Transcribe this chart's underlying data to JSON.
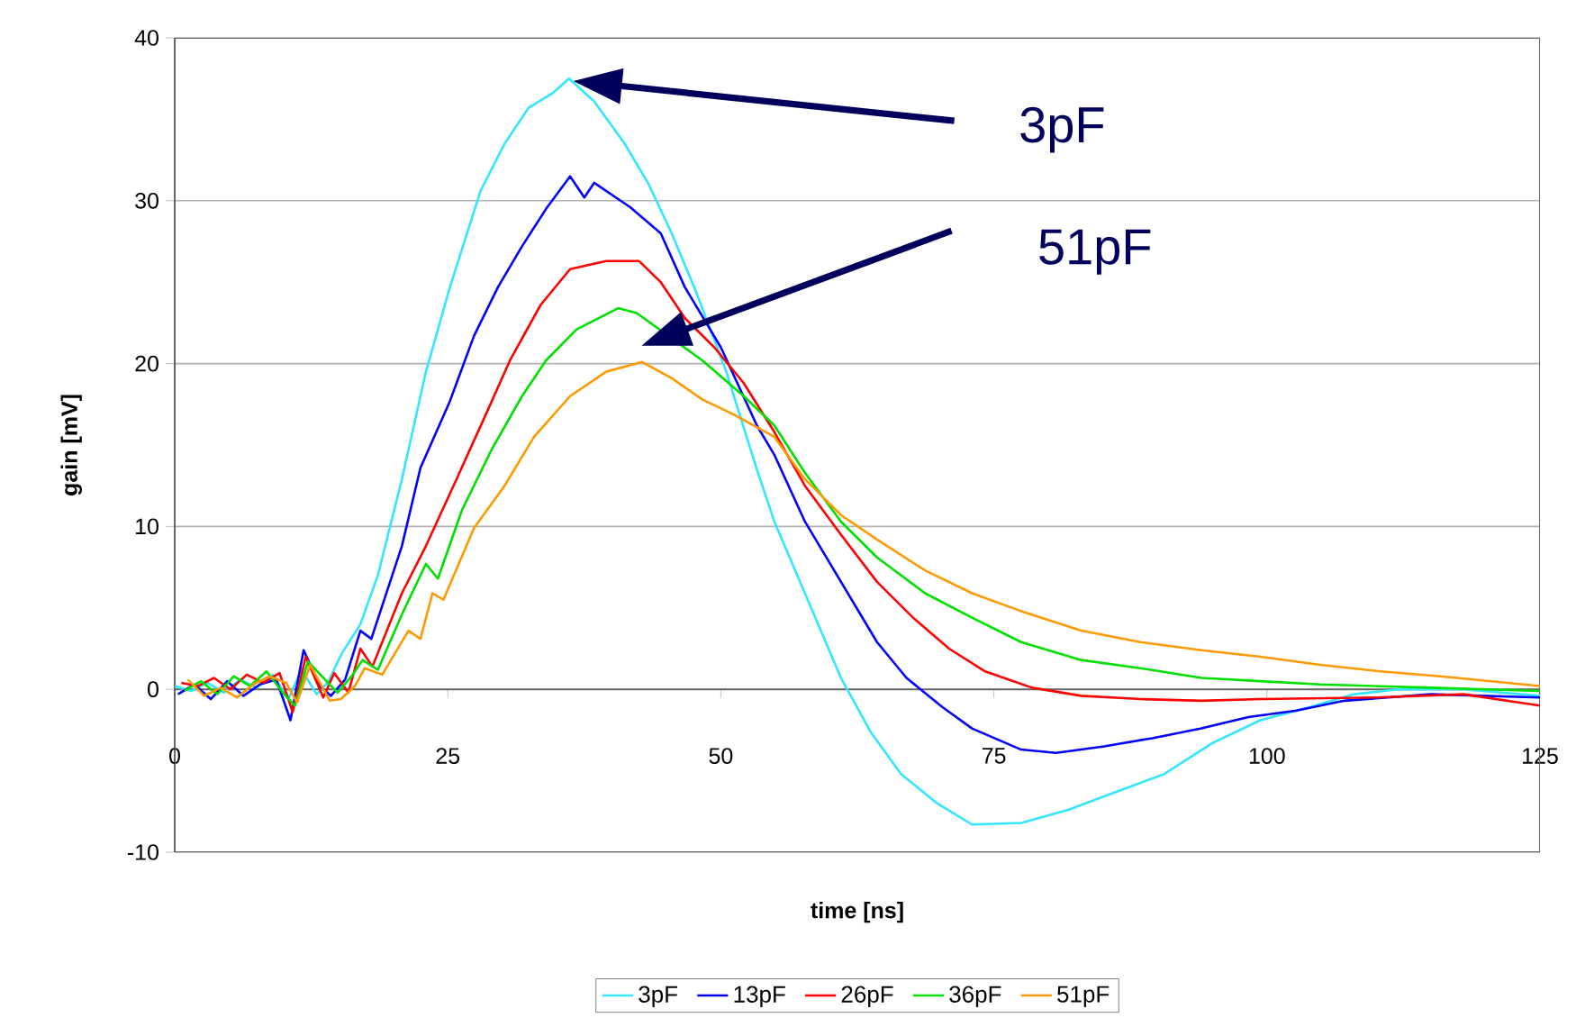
{
  "chart_data": {
    "type": "line",
    "xlabel": "time [ns]",
    "ylabel": "gain [mV]",
    "xlim": [
      0,
      125
    ],
    "xticks": [
      0,
      25,
      50,
      75,
      100,
      125
    ],
    "ylim": [
      -10,
      40
    ],
    "yticks": [
      -10,
      0,
      10,
      20,
      30,
      40
    ],
    "grid": "y",
    "legend": "bottom",
    "marker": "none",
    "line_style": "solid",
    "annotations": [
      "3pF",
      "51pF"
    ],
    "series": [
      {
        "name": "3pF",
        "color": "#33e6ff",
        "x": [
          0,
          1.5,
          3,
          4.5,
          6,
          7.5,
          9,
          10.4,
          11.6,
          13,
          14,
          15.3,
          17,
          18.6,
          20.8,
          23,
          25.2,
          28,
          30.2,
          32.4,
          34.6,
          36.1,
          38.4,
          41.2,
          43.4,
          45.5,
          47.8,
          50.5,
          53.3,
          54.9,
          57.7,
          61,
          63.7,
          66.5,
          69.8,
          73,
          77.5,
          81.8,
          86.2,
          90.6,
          95,
          99.4,
          103.9,
          108,
          112,
          118,
          125
        ],
        "values": [
          0.2,
          -0.1,
          0.4,
          -0.2,
          0.6,
          0.1,
          0.9,
          -0.6,
          1.2,
          -0.3,
          0.4,
          2.2,
          4.0,
          7,
          12.9,
          19.5,
          24.7,
          30.6,
          33.5,
          35.7,
          36.6,
          37.5,
          36.1,
          33.5,
          31,
          28,
          24.3,
          19.5,
          13.5,
          10.3,
          5.9,
          0.7,
          -2.6,
          -5.2,
          -7,
          -8.3,
          -8.2,
          -7.4,
          -6.3,
          -5.2,
          -3.3,
          -1.9,
          -1.1,
          -0.3,
          0,
          0,
          -0.4
        ]
      },
      {
        "name": "13pF",
        "color": "#0000ff",
        "x": [
          0.3,
          1.8,
          3.3,
          4.8,
          6.3,
          7.8,
          9.3,
          10.6,
          11.8,
          13.3,
          14.3,
          15.6,
          17,
          18,
          20.8,
          22.5,
          25.2,
          27.4,
          29.6,
          31.8,
          34,
          36.2,
          37.5,
          38.4,
          41.7,
          44.5,
          46.7,
          50,
          53.3,
          54.9,
          57.7,
          61,
          64.3,
          67,
          70.3,
          73,
          77.5,
          80.7,
          85.1,
          89.5,
          94,
          98.3,
          102.7,
          107.1,
          115,
          125
        ],
        "values": [
          -0.3,
          0.3,
          -0.6,
          0.5,
          -0.4,
          0.3,
          0.6,
          -1.9,
          2.4,
          0.2,
          -0.4,
          0.6,
          3.6,
          3.1,
          8.8,
          13.6,
          17.7,
          21.7,
          24.7,
          27.2,
          29.5,
          31.5,
          30.2,
          31.1,
          29.6,
          28,
          24.7,
          21,
          16.2,
          14.4,
          10.3,
          6.6,
          2.9,
          0.7,
          -1.1,
          -2.4,
          -3.7,
          -3.9,
          -3.5,
          -3,
          -2.4,
          -1.7,
          -1.3,
          -0.7,
          -0.3,
          -0.5
        ]
      },
      {
        "name": "26pF",
        "color": "#ff0000",
        "x": [
          0.6,
          2.1,
          3.6,
          5.1,
          6.6,
          8.1,
          9.6,
          10.8,
          12,
          13.6,
          14.6,
          15.9,
          17,
          18.1,
          20.8,
          23,
          25.8,
          28.5,
          30.7,
          33.5,
          36.2,
          39.5,
          42.5,
          44.5,
          46.7,
          49.4,
          52.1,
          54.9,
          57.7,
          61,
          64.3,
          67.6,
          70.9,
          74.2,
          78.5,
          83,
          88.5,
          94,
          99.4,
          110,
          118,
          125
        ],
        "values": [
          0.4,
          0.2,
          0.7,
          0,
          0.9,
          0.4,
          1.0,
          -1.4,
          2.0,
          -0.5,
          1.0,
          -0.2,
          2.5,
          1.4,
          5.9,
          8.8,
          12.9,
          16.9,
          20.2,
          23.6,
          25.8,
          26.3,
          26.3,
          25,
          22.8,
          21,
          18.8,
          15.8,
          12.5,
          9.5,
          6.6,
          4.4,
          2.5,
          1.1,
          0.1,
          -0.4,
          -0.6,
          -0.7,
          -0.6,
          -0.5,
          -0.3,
          -1.0
        ]
      },
      {
        "name": "36pF",
        "color": "#00e000",
        "x": [
          0.9,
          2.4,
          3.9,
          5.4,
          6.9,
          8.4,
          9.9,
          11,
          12.2,
          13.9,
          14.9,
          16.2,
          17.2,
          18.6,
          20.8,
          23,
          24.1,
          26.3,
          29,
          31.8,
          34,
          36.8,
          40.6,
          42.3,
          45.5,
          48.3,
          52.1,
          54.9,
          57.7,
          61,
          64.3,
          68.7,
          73,
          77.5,
          83,
          88.4,
          94,
          99.4,
          104.9,
          115,
          125
        ],
        "values": [
          -0.1,
          0.5,
          -0.3,
          0.8,
          0.2,
          1.1,
          -0.2,
          -1.0,
          1.7,
          0.5,
          -0.2,
          0.8,
          1.8,
          1.2,
          4.6,
          7.7,
          6.8,
          11,
          14.7,
          18,
          20.2,
          22.1,
          23.4,
          23.1,
          null,
          20.2,
          18,
          16.2,
          13.3,
          10.3,
          8.1,
          5.9,
          4.4,
          2.9,
          1.8,
          1.3,
          0.7,
          0.5,
          0.3,
          0.1,
          -0.1
        ]
      },
      {
        "name": "51pF",
        "color": "#ff9900",
        "x": [
          1.2,
          2.7,
          4.2,
          5.7,
          7.2,
          8.7,
          10.2,
          11.2,
          12.4,
          14.2,
          15.2,
          16.5,
          17.4,
          19,
          21.4,
          22.5,
          23.6,
          24.6,
          27.4,
          30.2,
          32.9,
          36.2,
          39.5,
          42.8,
          45.5,
          48.3,
          51.1,
          54.9,
          57.7,
          61,
          64.3,
          68.7,
          73,
          77.5,
          83,
          88.4,
          94,
          99.4,
          104.9,
          110.4,
          115.9,
          125
        ],
        "values": [
          0.6,
          -0.4,
          0.1,
          -0.5,
          0.3,
          0.8,
          0.4,
          -0.8,
          1.5,
          -0.7,
          -0.6,
          0.2,
          1.3,
          0.9,
          3.6,
          3.1,
          5.9,
          5.5,
          9.9,
          12.5,
          15.5,
          18,
          19.5,
          20.1,
          19.1,
          17.8,
          16.9,
          15.5,
          12.9,
          10.7,
          9.2,
          7.3,
          5.9,
          4.8,
          3.6,
          2.9,
          2.4,
          2.0,
          1.5,
          1.1,
          0.8,
          0.2
        ]
      }
    ]
  }
}
